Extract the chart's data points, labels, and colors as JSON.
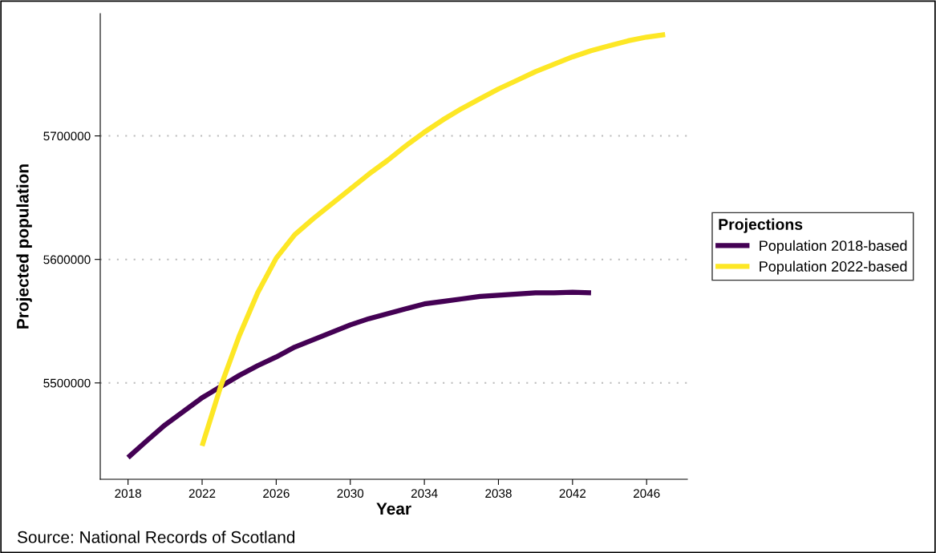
{
  "chart_data": {
    "type": "line",
    "xlabel": "Year",
    "ylabel": "Projected population",
    "legend_title": "Projections",
    "legend": "right",
    "grid": "y",
    "line_style": "solid",
    "marker": "none",
    "xlim": [
      2016.5,
      2048.2
    ],
    "ylim": [
      5422000,
      5799000
    ],
    "xticks": [
      2018,
      2022,
      2026,
      2030,
      2034,
      2038,
      2042,
      2046
    ],
    "yticks": [
      5500000,
      5600000,
      5700000
    ],
    "series": [
      {
        "name": "Population 2018-based",
        "color": "#440154",
        "x": [
          2018,
          2019,
          2020,
          2021,
          2022,
          2023,
          2024,
          2025,
          2026,
          2027,
          2028,
          2029,
          2030,
          2031,
          2032,
          2033,
          2034,
          2035,
          2036,
          2037,
          2038,
          2039,
          2040,
          2041,
          2042,
          2043
        ],
        "values": [
          5439600,
          5453000,
          5466000,
          5477000,
          5488000,
          5497000,
          5506000,
          5514000,
          5521000,
          5529000,
          5535000,
          5541000,
          5547000,
          5552000,
          5556000,
          5560000,
          5564000,
          5566000,
          5568000,
          5570000,
          5571000,
          5572000,
          5573000,
          5573000,
          5573500,
          5573000
        ]
      },
      {
        "name": "Population 2022-based",
        "color": "#fde725",
        "x": [
          2022,
          2023,
          2024,
          2025,
          2026,
          2027,
          2028,
          2029,
          2030,
          2031,
          2032,
          2033,
          2034,
          2035,
          2036,
          2037,
          2038,
          2039,
          2040,
          2041,
          2042,
          2043,
          2044,
          2045,
          2046,
          2047
        ],
        "values": [
          5449000,
          5497000,
          5538000,
          5573000,
          5601000,
          5620000,
          5633000,
          5645000,
          5657000,
          5669000,
          5680000,
          5692000,
          5703000,
          5713000,
          5722000,
          5730000,
          5738000,
          5745000,
          5752000,
          5758000,
          5764000,
          5769000,
          5773000,
          5777000,
          5780000,
          5782000
        ]
      }
    ],
    "annotations": [
      "Source: National Records of Scotland"
    ]
  }
}
